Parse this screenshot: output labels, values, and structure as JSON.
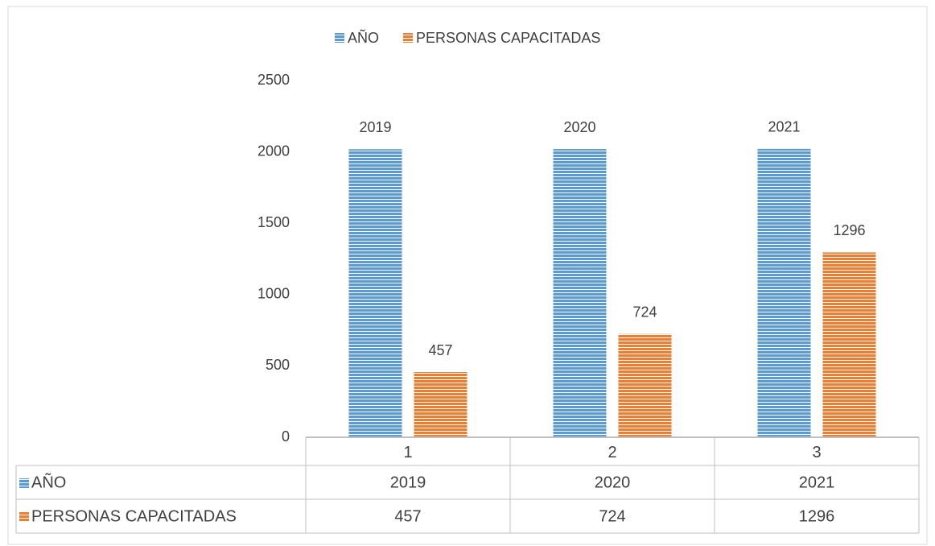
{
  "chart_data": {
    "type": "bar",
    "categories": [
      "1",
      "2",
      "3"
    ],
    "series": [
      {
        "name": "AÑO",
        "color": "#5b9bd5",
        "values": [
          2019,
          2020,
          2021
        ]
      },
      {
        "name": "PERSONAS CAPACITADAS",
        "color": "#ed7d31",
        "values": [
          457,
          724,
          1296
        ]
      }
    ],
    "ylim": [
      0,
      2500
    ],
    "yticks": [
      0,
      500,
      1000,
      1500,
      2000,
      2500
    ],
    "grid": false,
    "legend": "top",
    "data_table": true
  }
}
